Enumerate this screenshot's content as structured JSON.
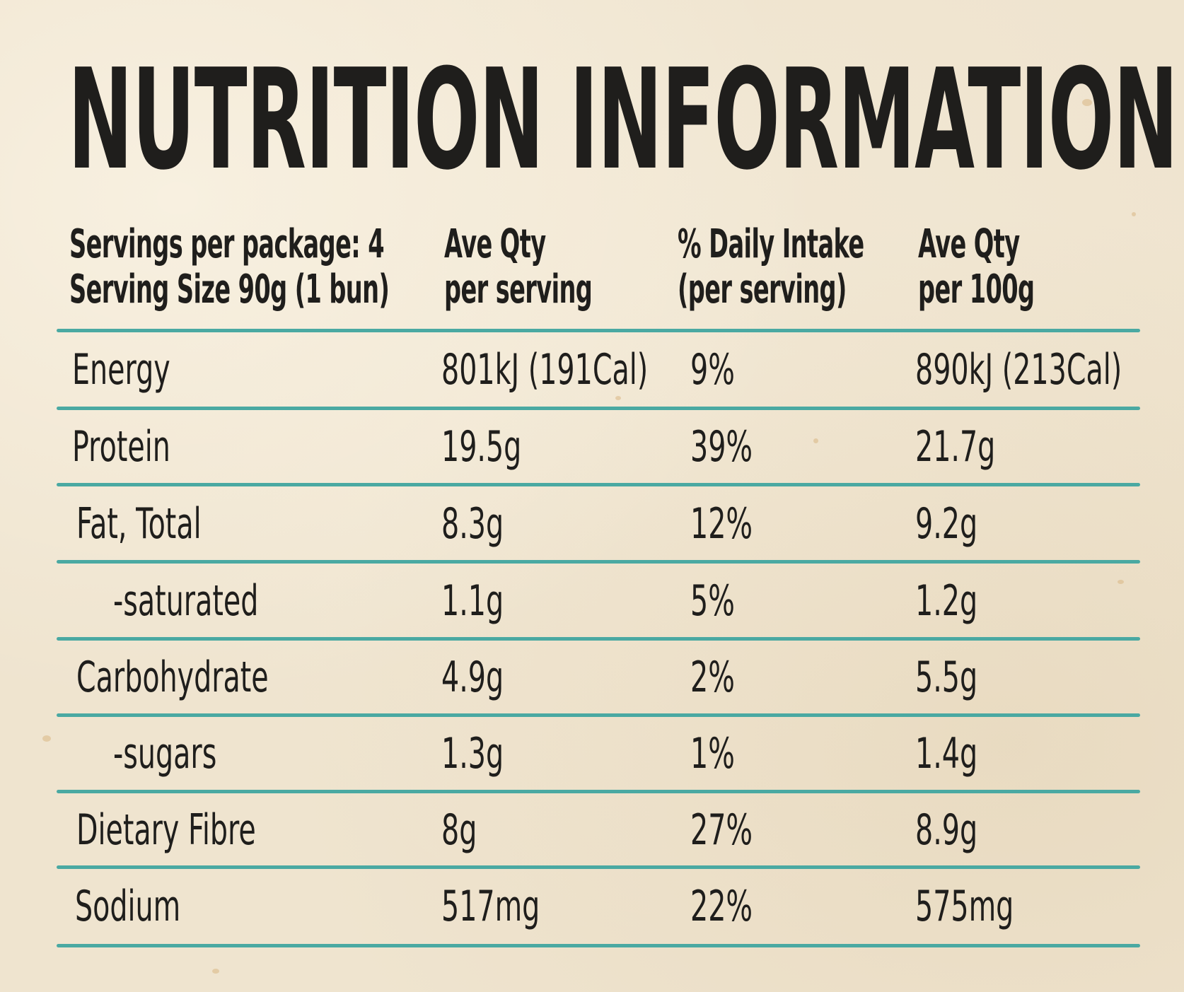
{
  "title": "NUTRITION INFORMATION",
  "header": {
    "servings_per_package": "Servings per package: 4",
    "serving_size": "Serving Size 90g (1 bun)",
    "col_per_serving_line1": "Ave Qty",
    "col_per_serving_line2": "per serving",
    "col_daily_intake_line1": "% Daily Intake",
    "col_daily_intake_line2": "(per serving)",
    "col_per_100g_line1": "Ave Qty",
    "col_per_100g_line2": "per 100g"
  },
  "rows": [
    {
      "nutrient": "Energy",
      "per_serving": "801kJ (191Cal)",
      "daily_intake": "9%",
      "per_100g": "890kJ (213Cal)"
    },
    {
      "nutrient": "Protein",
      "per_serving": "19.5g",
      "daily_intake": "39%",
      "per_100g": "21.7g"
    },
    {
      "nutrient": "Fat, Total",
      "per_serving": "8.3g",
      "daily_intake": "12%",
      "per_100g": "9.2g"
    },
    {
      "nutrient": "-saturated",
      "per_serving": "1.1g",
      "daily_intake": "5%",
      "per_100g": "1.2g"
    },
    {
      "nutrient": "Carbohydrate",
      "per_serving": "4.9g",
      "daily_intake": "2%",
      "per_100g": "5.5g"
    },
    {
      "nutrient": "-sugars",
      "per_serving": "1.3g",
      "daily_intake": "1%",
      "per_100g": "1.4g"
    },
    {
      "nutrient": "Dietary Fibre",
      "per_serving": "8g",
      "daily_intake": "27%",
      "per_100g": "8.9g"
    },
    {
      "nutrient": "Sodium",
      "per_serving": "517mg",
      "daily_intake": "22%",
      "per_100g": "575mg"
    }
  ],
  "colors": {
    "rule": "#4aa9a2",
    "text": "#1f1e1c",
    "background": "#efe4cf"
  }
}
